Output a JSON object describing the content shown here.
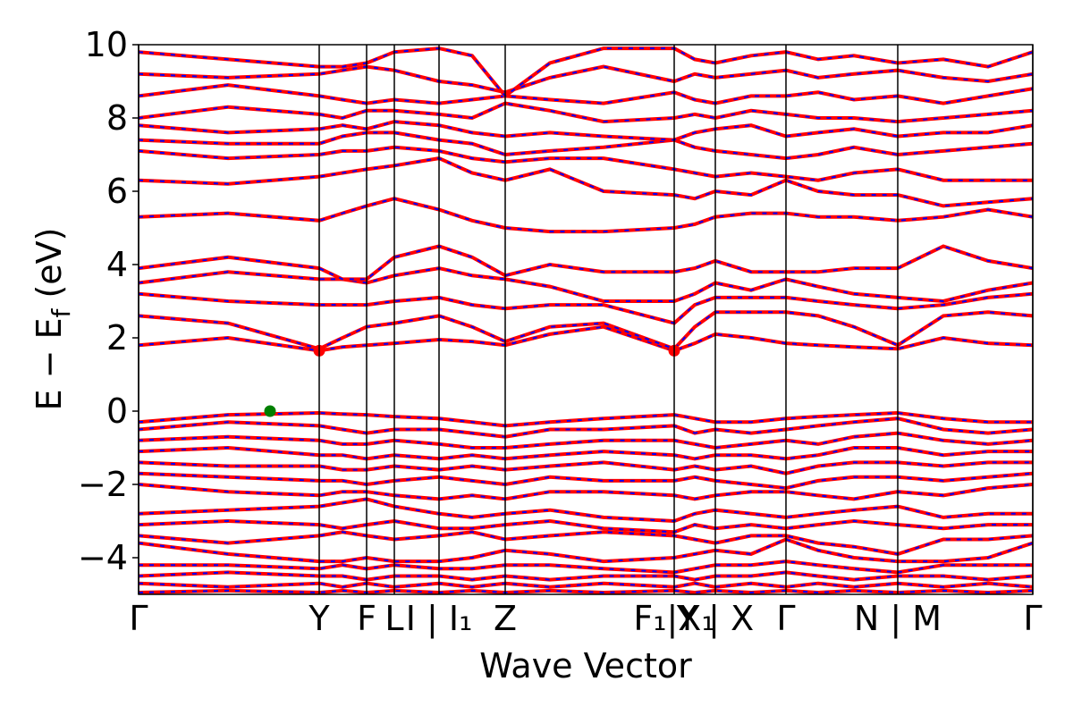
{
  "chart_data": {
    "type": "band",
    "xlabel": "Wave Vector",
    "ylabel": [
      "E − E",
      "f",
      " (eV)"
    ],
    "xlim": [
      0,
      1000
    ],
    "ylim": [
      -5,
      10
    ],
    "yticks": [
      {
        "value": -4,
        "label": "−4"
      },
      {
        "value": -2,
        "label": "−2"
      },
      0,
      2,
      4,
      6,
      8,
      10
    ],
    "xticks": [
      {
        "value": 0,
        "label": "Γ"
      },
      {
        "value": 202,
        "label": "Y"
      },
      {
        "value": 255,
        "label": "F"
      },
      {
        "value": 286,
        "label": "L"
      },
      {
        "value": 336,
        "label": "I | I₁"
      },
      {
        "value": 410,
        "label": "Z"
      },
      {
        "value": 599,
        "label": "F₁|X₁"
      },
      {
        "value": 645,
        "label": "Y | X"
      },
      {
        "value": 724,
        "label": "Γ"
      },
      {
        "value": 849,
        "label": "N | M"
      },
      {
        "value": 1000,
        "label": "Γ"
      }
    ],
    "band_color": "#ff0000",
    "band_dash_color": "#0000ff",
    "x": [
      0,
      100,
      202,
      228,
      255,
      286,
      336,
      373,
      410,
      460,
      520,
      599,
      622,
      645,
      685,
      724,
      760,
      800,
      849,
      900,
      950,
      1000
    ],
    "bands": [
      [
        1.8,
        2.0,
        1.65,
        1.75,
        1.8,
        1.85,
        1.95,
        1.9,
        1.8,
        2.1,
        2.3,
        1.65,
        1.85,
        2.1,
        2.0,
        1.85,
        1.8,
        1.75,
        1.7,
        2.0,
        1.85,
        1.8
      ],
      [
        2.6,
        2.4,
        1.7,
        2.0,
        2.3,
        2.4,
        2.6,
        2.3,
        1.9,
        2.3,
        2.4,
        1.7,
        2.3,
        2.7,
        2.7,
        2.7,
        2.6,
        2.3,
        1.8,
        2.6,
        2.7,
        2.6
      ],
      [
        3.2,
        3.0,
        2.9,
        2.9,
        2.9,
        3.0,
        3.1,
        2.9,
        2.8,
        2.9,
        2.9,
        2.4,
        2.9,
        3.1,
        3.1,
        3.1,
        3.0,
        2.9,
        2.8,
        2.9,
        3.1,
        3.2
      ],
      [
        3.5,
        3.8,
        3.6,
        3.6,
        3.5,
        3.7,
        3.9,
        3.7,
        3.6,
        3.4,
        3.0,
        3.0,
        3.2,
        3.5,
        3.3,
        3.6,
        3.4,
        3.2,
        3.1,
        3.0,
        3.3,
        3.5
      ],
      [
        3.9,
        4.2,
        3.9,
        3.6,
        3.6,
        4.2,
        4.5,
        4.2,
        3.7,
        4.0,
        3.8,
        3.8,
        3.9,
        4.1,
        3.8,
        3.8,
        3.8,
        3.9,
        3.9,
        4.5,
        4.1,
        3.9
      ],
      [
        5.3,
        5.4,
        5.2,
        5.4,
        5.6,
        5.8,
        5.5,
        5.2,
        5.0,
        4.9,
        4.9,
        5.0,
        5.1,
        5.3,
        5.4,
        5.4,
        5.3,
        5.3,
        5.2,
        5.3,
        5.5,
        5.3
      ],
      [
        6.3,
        6.2,
        6.4,
        6.5,
        6.6,
        6.7,
        6.9,
        6.5,
        6.3,
        6.6,
        6.0,
        5.9,
        5.8,
        6.0,
        5.9,
        6.3,
        6.0,
        5.9,
        5.9,
        5.6,
        5.7,
        5.8
      ],
      [
        7.1,
        6.9,
        7.0,
        7.1,
        7.1,
        7.2,
        7.1,
        6.9,
        6.8,
        6.9,
        6.9,
        6.6,
        6.5,
        6.4,
        6.5,
        6.4,
        6.3,
        6.5,
        6.6,
        6.3,
        6.3,
        6.3
      ],
      [
        7.4,
        7.3,
        7.3,
        7.5,
        7.6,
        7.6,
        7.4,
        7.3,
        7.0,
        7.1,
        7.2,
        7.4,
        7.2,
        7.1,
        7.0,
        6.9,
        7.0,
        7.2,
        7.0,
        7.1,
        7.2,
        7.3
      ],
      [
        7.8,
        7.6,
        7.7,
        7.8,
        7.7,
        7.9,
        7.8,
        7.6,
        7.5,
        7.6,
        7.5,
        7.4,
        7.6,
        7.7,
        7.8,
        7.5,
        7.6,
        7.7,
        7.5,
        7.6,
        7.6,
        7.8
      ],
      [
        8.0,
        8.3,
        8.1,
        8.0,
        8.2,
        8.2,
        8.1,
        8.0,
        8.4,
        8.2,
        7.9,
        8.0,
        8.1,
        8.0,
        8.2,
        8.1,
        8.0,
        8.0,
        7.9,
        8.0,
        8.1,
        8.2
      ],
      [
        8.6,
        8.9,
        8.6,
        8.5,
        8.4,
        8.5,
        8.4,
        8.5,
        8.6,
        8.5,
        8.4,
        8.7,
        8.5,
        8.4,
        8.6,
        8.6,
        8.7,
        8.5,
        8.6,
        8.4,
        8.6,
        8.8
      ],
      [
        9.2,
        9.1,
        9.2,
        9.3,
        9.4,
        9.3,
        9.0,
        8.9,
        8.7,
        9.1,
        9.4,
        9.0,
        9.2,
        9.1,
        9.2,
        9.3,
        9.1,
        9.2,
        9.3,
        9.1,
        9.0,
        9.2
      ],
      [
        9.8,
        9.6,
        9.4,
        9.4,
        9.5,
        9.8,
        9.9,
        9.7,
        8.6,
        9.5,
        9.9,
        9.9,
        9.6,
        9.5,
        9.7,
        9.8,
        9.6,
        9.7,
        9.5,
        9.6,
        9.4,
        9.8
      ],
      [
        -0.3,
        -0.1,
        -0.05,
        -0.08,
        -0.1,
        -0.15,
        -0.2,
        -0.3,
        -0.4,
        -0.3,
        -0.2,
        -0.1,
        -0.2,
        -0.3,
        -0.3,
        -0.2,
        -0.15,
        -0.1,
        -0.05,
        -0.2,
        -0.3,
        -0.3
      ],
      [
        -0.5,
        -0.3,
        -0.4,
        -0.5,
        -0.6,
        -0.5,
        -0.5,
        -0.6,
        -0.7,
        -0.5,
        -0.5,
        -0.4,
        -0.6,
        -0.5,
        -0.6,
        -0.5,
        -0.4,
        -0.3,
        -0.2,
        -0.5,
        -0.6,
        -0.5
      ],
      [
        -0.8,
        -0.7,
        -0.8,
        -0.9,
        -0.9,
        -0.8,
        -0.9,
        -1.0,
        -1.0,
        -0.9,
        -0.8,
        -0.8,
        -0.9,
        -1.0,
        -0.9,
        -0.8,
        -0.9,
        -0.7,
        -0.6,
        -0.8,
        -0.9,
        -0.8
      ],
      [
        -1.1,
        -1.0,
        -1.2,
        -1.2,
        -1.3,
        -1.2,
        -1.3,
        -1.2,
        -1.3,
        -1.2,
        -1.1,
        -1.2,
        -1.3,
        -1.2,
        -1.2,
        -1.3,
        -1.2,
        -1.0,
        -1.0,
        -1.2,
        -1.1,
        -1.1
      ],
      [
        -1.4,
        -1.5,
        -1.5,
        -1.6,
        -1.6,
        -1.5,
        -1.6,
        -1.5,
        -1.6,
        -1.5,
        -1.4,
        -1.6,
        -1.5,
        -1.6,
        -1.5,
        -1.7,
        -1.5,
        -1.4,
        -1.4,
        -1.5,
        -1.4,
        -1.4
      ],
      [
        -1.7,
        -1.8,
        -1.9,
        -1.9,
        -2.0,
        -1.9,
        -1.8,
        -1.9,
        -2.0,
        -1.8,
        -1.9,
        -1.9,
        -1.8,
        -1.9,
        -2.0,
        -2.1,
        -1.9,
        -1.8,
        -1.8,
        -1.9,
        -1.8,
        -1.7
      ],
      [
        -2.0,
        -2.2,
        -2.3,
        -2.2,
        -2.2,
        -2.3,
        -2.4,
        -2.3,
        -2.4,
        -2.2,
        -2.2,
        -2.3,
        -2.4,
        -2.3,
        -2.2,
        -2.2,
        -2.3,
        -2.4,
        -2.2,
        -2.3,
        -2.1,
        -2.0
      ],
      [
        -2.8,
        -2.7,
        -2.6,
        -2.5,
        -2.4,
        -2.6,
        -2.8,
        -2.9,
        -2.8,
        -2.7,
        -2.9,
        -3.0,
        -2.8,
        -2.7,
        -2.8,
        -2.9,
        -2.8,
        -2.7,
        -2.6,
        -2.9,
        -2.8,
        -2.8
      ],
      [
        -3.1,
        -3.0,
        -3.1,
        -3.2,
        -3.1,
        -3.0,
        -3.2,
        -3.2,
        -3.1,
        -3.0,
        -3.2,
        -3.3,
        -3.1,
        -3.2,
        -3.1,
        -3.2,
        -3.1,
        -3.0,
        -3.1,
        -3.2,
        -3.1,
        -3.1
      ],
      [
        -3.4,
        -3.6,
        -3.4,
        -3.3,
        -3.4,
        -3.5,
        -3.4,
        -3.3,
        -3.5,
        -3.4,
        -3.3,
        -3.4,
        -3.5,
        -3.6,
        -3.4,
        -3.4,
        -3.6,
        -3.7,
        -3.9,
        -3.5,
        -3.5,
        -3.4
      ],
      [
        -3.6,
        -3.9,
        -4.1,
        -4.1,
        -4.0,
        -4.1,
        -4.1,
        -4.0,
        -3.8,
        -3.9,
        -4.1,
        -4.0,
        -3.9,
        -3.8,
        -3.9,
        -3.5,
        -3.8,
        -4.0,
        -4.1,
        -4.1,
        -4.0,
        -3.6
      ],
      [
        -4.2,
        -4.2,
        -4.3,
        -4.2,
        -4.3,
        -4.2,
        -4.3,
        -4.3,
        -4.2,
        -4.2,
        -4.3,
        -4.4,
        -4.3,
        -4.2,
        -4.2,
        -4.1,
        -4.2,
        -4.3,
        -4.4,
        -4.2,
        -4.2,
        -4.2
      ],
      [
        -4.5,
        -4.4,
        -4.5,
        -4.5,
        -4.6,
        -4.5,
        -4.5,
        -4.6,
        -4.5,
        -4.6,
        -4.5,
        -4.5,
        -4.6,
        -4.5,
        -4.5,
        -4.4,
        -4.5,
        -4.6,
        -4.5,
        -4.5,
        -4.6,
        -4.5
      ],
      [
        -4.7,
        -4.8,
        -4.7,
        -4.8,
        -4.7,
        -4.8,
        -4.7,
        -4.8,
        -4.7,
        -4.8,
        -4.7,
        -4.8,
        -4.7,
        -4.8,
        -4.7,
        -4.8,
        -4.7,
        -4.8,
        -4.7,
        -4.8,
        -4.7,
        -4.8
      ],
      [
        -4.95,
        -4.9,
        -4.95,
        -4.9,
        -4.95,
        -4.9,
        -4.95,
        -4.9,
        -4.95,
        -4.9,
        -4.95,
        -4.9,
        -4.95,
        -4.9,
        -4.95,
        -4.9,
        -4.95,
        -4.9,
        -4.95,
        -4.9,
        -4.95,
        -4.9
      ]
    ],
    "extrema": [
      {
        "x": 147,
        "y": 0,
        "color": "#008000"
      },
      {
        "x": 202,
        "y": 1.65,
        "color": "#ff0000"
      },
      {
        "x": 599,
        "y": 1.65,
        "color": "#ff0000"
      }
    ]
  }
}
